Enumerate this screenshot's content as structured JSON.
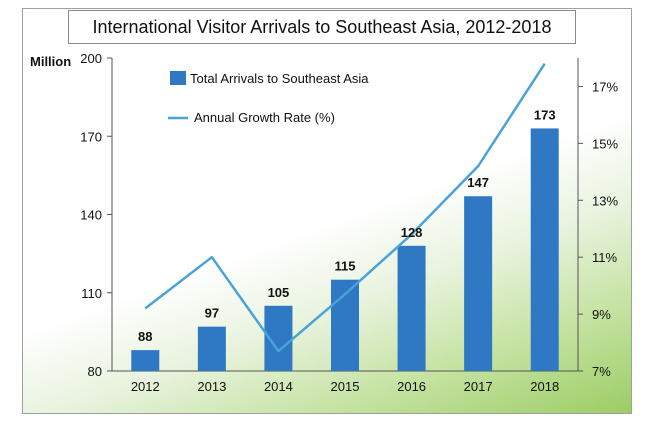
{
  "chart_data": {
    "type": "bar",
    "title": "International Visitor Arrivals to Southeast Asia, 2012-2018",
    "ylabel": "Million",
    "categories": [
      "2012",
      "2013",
      "2014",
      "2015",
      "2016",
      "2017",
      "2018"
    ],
    "ylim": [
      80,
      200
    ],
    "yticks": [
      "80",
      "110",
      "140",
      "170",
      "200"
    ],
    "y2lim": [
      7,
      18
    ],
    "y2ticks": [
      "7%",
      "9%",
      "11%",
      "13%",
      "15%",
      "17%"
    ],
    "series": [
      {
        "name": "Total Arrivals to Southeast Asia",
        "type": "bar",
        "axis": "left",
        "values": [
          88,
          97,
          105,
          115,
          128,
          147,
          173
        ],
        "labels": [
          "88",
          "97",
          "105",
          "115",
          "128",
          "147",
          "173"
        ],
        "color": "#2f78c4"
      },
      {
        "name": "Annual Growth Rate (%)",
        "type": "line",
        "axis": "right",
        "values": [
          9.2,
          11.0,
          7.7,
          9.7,
          11.8,
          14.2,
          17.8
        ],
        "color": "#4aa3d6"
      }
    ],
    "grid": false,
    "legend": "top-left"
  }
}
